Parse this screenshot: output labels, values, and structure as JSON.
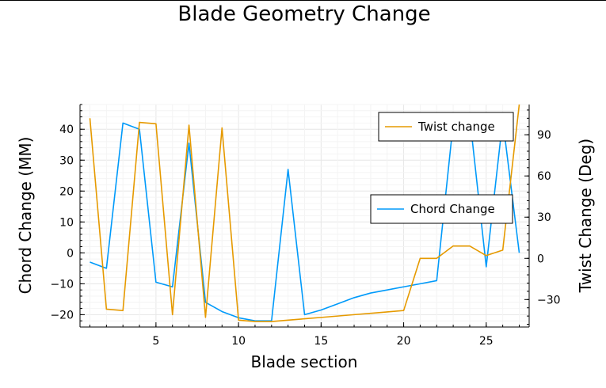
{
  "chart_data": {
    "type": "line",
    "title": "Blade Geometry Change",
    "xlabel": "Blade section",
    "ylabel_left": "Chord Change (MM)",
    "ylabel_right": "Twist Change (Deg)",
    "xlim": [
      0.4,
      27.6
    ],
    "ylim_left": [
      -24,
      48
    ],
    "ylim_right": [
      -50,
      112
    ],
    "x_ticks": [
      5,
      10,
      15,
      20,
      25
    ],
    "y_left_ticks": [
      -20,
      -10,
      0,
      10,
      20,
      30,
      40
    ],
    "y_right_ticks": [
      -30,
      0,
      30,
      60,
      90
    ],
    "grid": true,
    "x": [
      1,
      2,
      3,
      4,
      5,
      6,
      7,
      8,
      9,
      10,
      11,
      12,
      13,
      14,
      15,
      16,
      17,
      18,
      19,
      20,
      21,
      22,
      23,
      24,
      25,
      26,
      27
    ],
    "series": [
      {
        "name": "Chord Change",
        "axis": "left",
        "color": "#009AFA",
        "legend_position": "middle-right",
        "values": [
          -3,
          -5,
          42,
          40,
          -9.5,
          -11,
          35.5,
          -16,
          -19,
          -21,
          -22,
          -22,
          27,
          -20,
          -18.5,
          -16.5,
          -14.5,
          -13,
          -12,
          -11,
          -10,
          -9,
          42,
          44,
          -4.5,
          43,
          0
        ]
      },
      {
        "name": "Twist change",
        "axis": "right",
        "color": "#E69A00",
        "legend_position": "top-right",
        "values": [
          102,
          -37,
          -38,
          99,
          98,
          -41,
          97,
          -43,
          95,
          -45,
          -46,
          -46,
          -45,
          -44,
          -43,
          -42,
          -41,
          -40,
          -39,
          -38,
          0,
          0,
          9,
          9,
          2,
          6,
          112
        ]
      }
    ]
  }
}
